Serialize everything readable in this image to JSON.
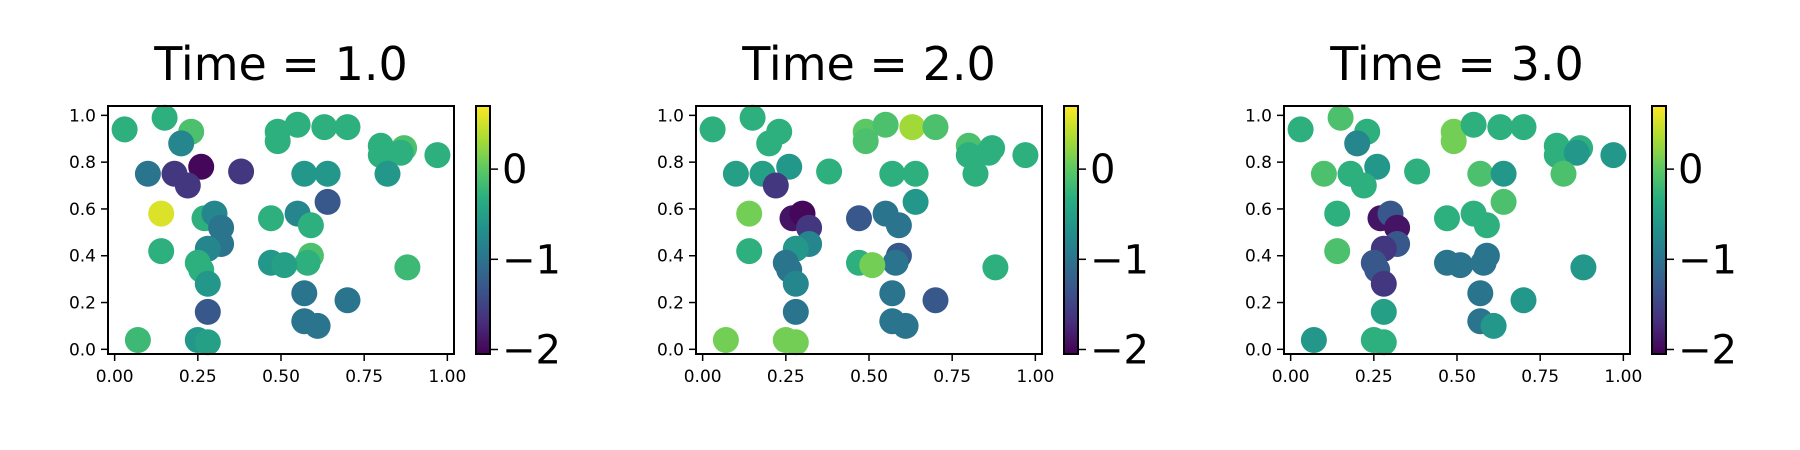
{
  "chart_data": [
    {
      "type": "scatter",
      "title": "Time = 1.0",
      "xlim": [
        -0.02,
        1.02
      ],
      "ylim": [
        -0.02,
        1.04
      ],
      "xticks": [
        "0.00",
        "0.25",
        "0.50",
        "0.75",
        "1.00"
      ],
      "yticks": [
        "0.0",
        "0.2",
        "0.4",
        "0.6",
        "0.8",
        "1.0"
      ],
      "colorbar": {
        "range": [
          -2.05,
          0.7
        ],
        "ticks": [
          "0",
          "−1",
          "−2"
        ],
        "tick_values": [
          0,
          -1,
          -2
        ]
      },
      "grid": false,
      "points": [
        {
          "x": 0.03,
          "y": 0.94,
          "c": -0.3
        },
        {
          "x": 0.15,
          "y": 0.99,
          "c": -0.3
        },
        {
          "x": 0.23,
          "y": 0.93,
          "c": -0.1
        },
        {
          "x": 0.2,
          "y": 0.88,
          "c": -0.8
        },
        {
          "x": 0.1,
          "y": 0.75,
          "c": -1.0
        },
        {
          "x": 0.18,
          "y": 0.75,
          "c": -1.6
        },
        {
          "x": 0.26,
          "y": 0.78,
          "c": -2.0
        },
        {
          "x": 0.38,
          "y": 0.76,
          "c": -1.6
        },
        {
          "x": 0.22,
          "y": 0.7,
          "c": -1.6
        },
        {
          "x": 0.14,
          "y": 0.58,
          "c": 0.55
        },
        {
          "x": 0.14,
          "y": 0.42,
          "c": -0.3
        },
        {
          "x": 0.27,
          "y": 0.56,
          "c": -0.3
        },
        {
          "x": 0.3,
          "y": 0.58,
          "c": -0.8
        },
        {
          "x": 0.32,
          "y": 0.52,
          "c": -1.0
        },
        {
          "x": 0.32,
          "y": 0.45,
          "c": -1.0
        },
        {
          "x": 0.28,
          "y": 0.43,
          "c": -0.8
        },
        {
          "x": 0.25,
          "y": 0.37,
          "c": -0.3
        },
        {
          "x": 0.26,
          "y": 0.34,
          "c": -0.3
        },
        {
          "x": 0.28,
          "y": 0.28,
          "c": -0.6
        },
        {
          "x": 0.28,
          "y": 0.16,
          "c": -1.3
        },
        {
          "x": 0.25,
          "y": 0.04,
          "c": -0.6
        },
        {
          "x": 0.28,
          "y": 0.03,
          "c": -0.5
        },
        {
          "x": 0.07,
          "y": 0.04,
          "c": -0.2
        },
        {
          "x": 0.49,
          "y": 0.93,
          "c": -0.3
        },
        {
          "x": 0.49,
          "y": 0.89,
          "c": -0.3
        },
        {
          "x": 0.55,
          "y": 0.96,
          "c": -0.3
        },
        {
          "x": 0.63,
          "y": 0.95,
          "c": -0.3
        },
        {
          "x": 0.7,
          "y": 0.95,
          "c": -0.3
        },
        {
          "x": 0.8,
          "y": 0.87,
          "c": -0.3
        },
        {
          "x": 0.8,
          "y": 0.83,
          "c": -0.3
        },
        {
          "x": 0.87,
          "y": 0.86,
          "c": -0.1
        },
        {
          "x": 0.86,
          "y": 0.84,
          "c": -0.3
        },
        {
          "x": 0.97,
          "y": 0.83,
          "c": -0.3
        },
        {
          "x": 0.82,
          "y": 0.75,
          "c": -0.6
        },
        {
          "x": 0.57,
          "y": 0.75,
          "c": -0.6
        },
        {
          "x": 0.64,
          "y": 0.75,
          "c": -0.6
        },
        {
          "x": 0.64,
          "y": 0.63,
          "c": -1.3
        },
        {
          "x": 0.55,
          "y": 0.58,
          "c": -0.8
        },
        {
          "x": 0.47,
          "y": 0.56,
          "c": -0.3
        },
        {
          "x": 0.59,
          "y": 0.53,
          "c": -0.3
        },
        {
          "x": 0.59,
          "y": 0.4,
          "c": -0.1
        },
        {
          "x": 0.58,
          "y": 0.37,
          "c": -0.3
        },
        {
          "x": 0.47,
          "y": 0.37,
          "c": -0.6
        },
        {
          "x": 0.51,
          "y": 0.36,
          "c": -0.5
        },
        {
          "x": 0.57,
          "y": 0.24,
          "c": -1.0
        },
        {
          "x": 0.7,
          "y": 0.21,
          "c": -1.0
        },
        {
          "x": 0.57,
          "y": 0.12,
          "c": -1.0
        },
        {
          "x": 0.61,
          "y": 0.1,
          "c": -1.0
        },
        {
          "x": 0.88,
          "y": 0.35,
          "c": -0.2
        }
      ]
    },
    {
      "type": "scatter",
      "title": "Time = 2.0",
      "xlim": [
        -0.02,
        1.02
      ],
      "ylim": [
        -0.02,
        1.04
      ],
      "xticks": [
        "0.00",
        "0.25",
        "0.50",
        "0.75",
        "1.00"
      ],
      "yticks": [
        "0.0",
        "0.2",
        "0.4",
        "0.6",
        "0.8",
        "1.0"
      ],
      "colorbar": {
        "range": [
          -2.05,
          0.7
        ],
        "ticks": [
          "0",
          "−1",
          "−2"
        ],
        "tick_values": [
          0,
          -1,
          -2
        ]
      },
      "grid": false,
      "points": [
        {
          "x": 0.03,
          "y": 0.94,
          "c": -0.3
        },
        {
          "x": 0.15,
          "y": 0.99,
          "c": -0.3
        },
        {
          "x": 0.23,
          "y": 0.93,
          "c": -0.3
        },
        {
          "x": 0.2,
          "y": 0.88,
          "c": -0.3
        },
        {
          "x": 0.1,
          "y": 0.75,
          "c": -0.5
        },
        {
          "x": 0.18,
          "y": 0.75,
          "c": -0.5
        },
        {
          "x": 0.26,
          "y": 0.78,
          "c": -0.6
        },
        {
          "x": 0.38,
          "y": 0.76,
          "c": -0.3
        },
        {
          "x": 0.22,
          "y": 0.7,
          "c": -1.6
        },
        {
          "x": 0.14,
          "y": 0.58,
          "c": 0.1
        },
        {
          "x": 0.14,
          "y": 0.42,
          "c": -0.3
        },
        {
          "x": 0.27,
          "y": 0.56,
          "c": -1.9
        },
        {
          "x": 0.3,
          "y": 0.58,
          "c": -2.0
        },
        {
          "x": 0.32,
          "y": 0.52,
          "c": -1.6
        },
        {
          "x": 0.32,
          "y": 0.45,
          "c": -0.8
        },
        {
          "x": 0.28,
          "y": 0.43,
          "c": -0.6
        },
        {
          "x": 0.25,
          "y": 0.37,
          "c": -1.0
        },
        {
          "x": 0.26,
          "y": 0.34,
          "c": -1.0
        },
        {
          "x": 0.28,
          "y": 0.28,
          "c": -0.8
        },
        {
          "x": 0.28,
          "y": 0.16,
          "c": -1.0
        },
        {
          "x": 0.25,
          "y": 0.04,
          "c": 0.1
        },
        {
          "x": 0.28,
          "y": 0.03,
          "c": 0.1
        },
        {
          "x": 0.07,
          "y": 0.04,
          "c": 0.1
        },
        {
          "x": 0.49,
          "y": 0.93,
          "c": 0.0
        },
        {
          "x": 0.49,
          "y": 0.89,
          "c": -0.1
        },
        {
          "x": 0.55,
          "y": 0.96,
          "c": -0.1
        },
        {
          "x": 0.63,
          "y": 0.95,
          "c": 0.3
        },
        {
          "x": 0.7,
          "y": 0.95,
          "c": -0.1
        },
        {
          "x": 0.8,
          "y": 0.87,
          "c": -0.1
        },
        {
          "x": 0.8,
          "y": 0.83,
          "c": -0.3
        },
        {
          "x": 0.87,
          "y": 0.86,
          "c": -0.3
        },
        {
          "x": 0.86,
          "y": 0.84,
          "c": -0.3
        },
        {
          "x": 0.97,
          "y": 0.83,
          "c": -0.3
        },
        {
          "x": 0.82,
          "y": 0.75,
          "c": -0.3
        },
        {
          "x": 0.57,
          "y": 0.75,
          "c": -0.3
        },
        {
          "x": 0.64,
          "y": 0.75,
          "c": -0.3
        },
        {
          "x": 0.64,
          "y": 0.63,
          "c": -0.6
        },
        {
          "x": 0.55,
          "y": 0.58,
          "c": -1.0
        },
        {
          "x": 0.47,
          "y": 0.56,
          "c": -1.3
        },
        {
          "x": 0.59,
          "y": 0.53,
          "c": -1.0
        },
        {
          "x": 0.59,
          "y": 0.4,
          "c": -1.3
        },
        {
          "x": 0.58,
          "y": 0.37,
          "c": -1.0
        },
        {
          "x": 0.47,
          "y": 0.37,
          "c": -0.3
        },
        {
          "x": 0.51,
          "y": 0.36,
          "c": 0.1
        },
        {
          "x": 0.57,
          "y": 0.24,
          "c": -1.0
        },
        {
          "x": 0.7,
          "y": 0.21,
          "c": -1.3
        },
        {
          "x": 0.57,
          "y": 0.12,
          "c": -1.0
        },
        {
          "x": 0.61,
          "y": 0.1,
          "c": -1.0
        },
        {
          "x": 0.88,
          "y": 0.35,
          "c": -0.3
        }
      ]
    },
    {
      "type": "scatter",
      "title": "Time = 3.0",
      "xlim": [
        -0.02,
        1.02
      ],
      "ylim": [
        -0.02,
        1.04
      ],
      "xticks": [
        "0.00",
        "0.25",
        "0.50",
        "0.75",
        "1.00"
      ],
      "yticks": [
        "0.0",
        "0.2",
        "0.4",
        "0.6",
        "0.8",
        "1.0"
      ],
      "colorbar": {
        "range": [
          -2.05,
          0.7
        ],
        "ticks": [
          "0",
          "−1",
          "−2"
        ],
        "tick_values": [
          0,
          -1,
          -2
        ]
      },
      "grid": false,
      "points": [
        {
          "x": 0.03,
          "y": 0.94,
          "c": -0.3
        },
        {
          "x": 0.15,
          "y": 0.99,
          "c": -0.1
        },
        {
          "x": 0.23,
          "y": 0.93,
          "c": -0.3
        },
        {
          "x": 0.2,
          "y": 0.88,
          "c": -0.8
        },
        {
          "x": 0.1,
          "y": 0.75,
          "c": -0.1
        },
        {
          "x": 0.18,
          "y": 0.75,
          "c": -0.3
        },
        {
          "x": 0.26,
          "y": 0.78,
          "c": -0.6
        },
        {
          "x": 0.38,
          "y": 0.76,
          "c": -0.3
        },
        {
          "x": 0.22,
          "y": 0.7,
          "c": -0.3
        },
        {
          "x": 0.14,
          "y": 0.58,
          "c": -0.3
        },
        {
          "x": 0.14,
          "y": 0.42,
          "c": -0.1
        },
        {
          "x": 0.27,
          "y": 0.56,
          "c": -1.9
        },
        {
          "x": 0.3,
          "y": 0.58,
          "c": -1.3
        },
        {
          "x": 0.32,
          "y": 0.52,
          "c": -1.9
        },
        {
          "x": 0.32,
          "y": 0.45,
          "c": -1.3
        },
        {
          "x": 0.28,
          "y": 0.43,
          "c": -1.6
        },
        {
          "x": 0.25,
          "y": 0.37,
          "c": -1.3
        },
        {
          "x": 0.26,
          "y": 0.34,
          "c": -1.3
        },
        {
          "x": 0.28,
          "y": 0.28,
          "c": -1.6
        },
        {
          "x": 0.28,
          "y": 0.16,
          "c": -0.5
        },
        {
          "x": 0.25,
          "y": 0.04,
          "c": -0.3
        },
        {
          "x": 0.28,
          "y": 0.03,
          "c": -0.3
        },
        {
          "x": 0.07,
          "y": 0.04,
          "c": -0.6
        },
        {
          "x": 0.49,
          "y": 0.93,
          "c": 0.1
        },
        {
          "x": 0.49,
          "y": 0.89,
          "c": 0.1
        },
        {
          "x": 0.55,
          "y": 0.96,
          "c": -0.3
        },
        {
          "x": 0.63,
          "y": 0.95,
          "c": -0.3
        },
        {
          "x": 0.7,
          "y": 0.95,
          "c": -0.3
        },
        {
          "x": 0.8,
          "y": 0.87,
          "c": -0.3
        },
        {
          "x": 0.8,
          "y": 0.83,
          "c": -0.3
        },
        {
          "x": 0.87,
          "y": 0.86,
          "c": -0.3
        },
        {
          "x": 0.86,
          "y": 0.84,
          "c": -0.6
        },
        {
          "x": 0.97,
          "y": 0.83,
          "c": -0.6
        },
        {
          "x": 0.82,
          "y": 0.75,
          "c": -0.1
        },
        {
          "x": 0.57,
          "y": 0.75,
          "c": -0.1
        },
        {
          "x": 0.64,
          "y": 0.75,
          "c": -0.6
        },
        {
          "x": 0.64,
          "y": 0.63,
          "c": -0.1
        },
        {
          "x": 0.55,
          "y": 0.58,
          "c": -0.3
        },
        {
          "x": 0.47,
          "y": 0.56,
          "c": -0.3
        },
        {
          "x": 0.59,
          "y": 0.53,
          "c": -0.3
        },
        {
          "x": 0.59,
          "y": 0.4,
          "c": -1.0
        },
        {
          "x": 0.58,
          "y": 0.37,
          "c": -1.0
        },
        {
          "x": 0.47,
          "y": 0.37,
          "c": -1.0
        },
        {
          "x": 0.51,
          "y": 0.36,
          "c": -1.0
        },
        {
          "x": 0.57,
          "y": 0.24,
          "c": -1.0
        },
        {
          "x": 0.7,
          "y": 0.21,
          "c": -0.6
        },
        {
          "x": 0.57,
          "y": 0.12,
          "c": -1.0
        },
        {
          "x": 0.61,
          "y": 0.1,
          "c": -0.6
        },
        {
          "x": 0.88,
          "y": 0.35,
          "c": -0.6
        }
      ]
    }
  ],
  "colors": {
    "colormap": "viridis",
    "stops": [
      "#440154",
      "#472d7b",
      "#3b528b",
      "#2c728e",
      "#21918c",
      "#28ae80",
      "#5ec962",
      "#addc30",
      "#fde725"
    ]
  }
}
